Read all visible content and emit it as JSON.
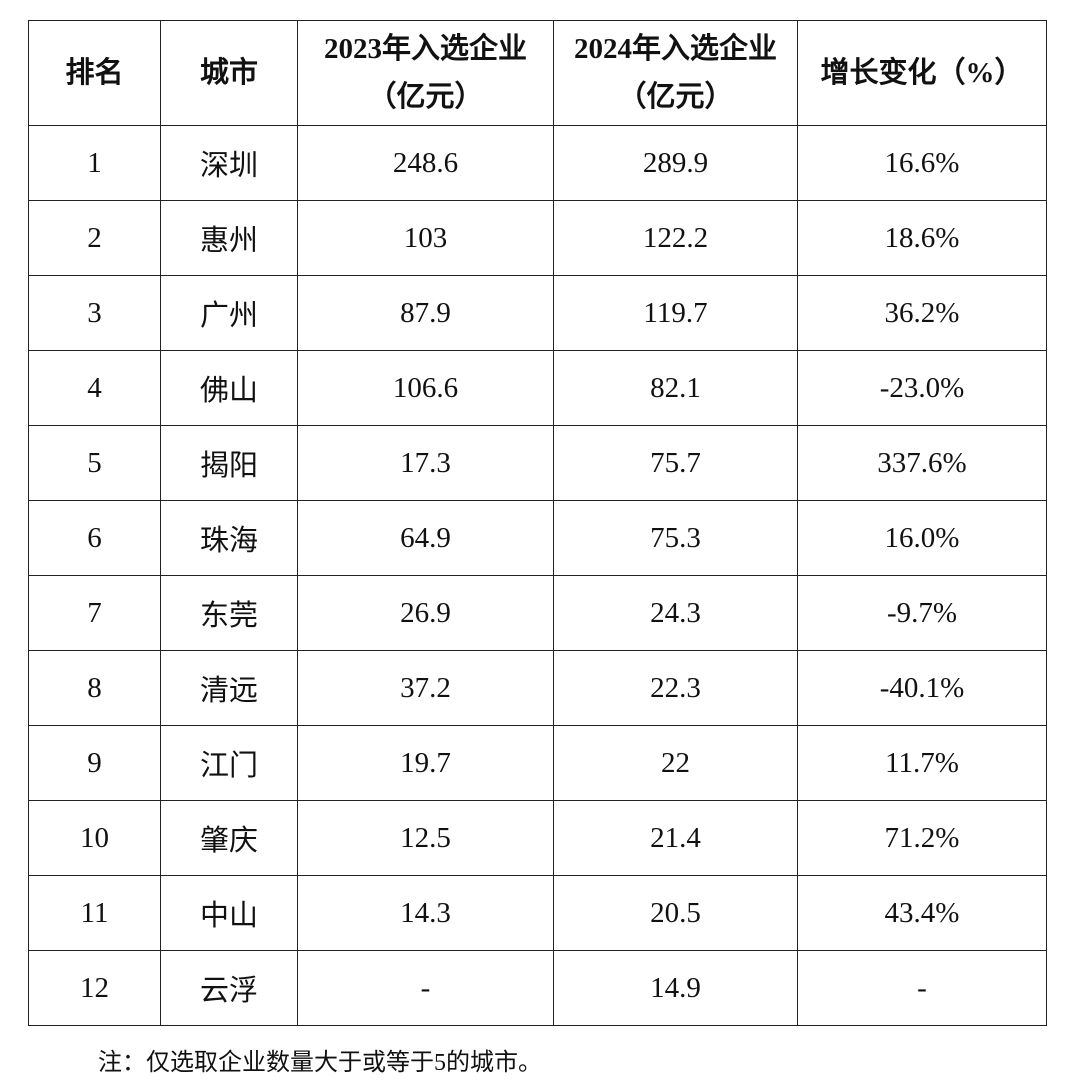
{
  "table": {
    "header": [
      "排名",
      "城市",
      "2023年入选企业（亿元）",
      "2024年入选企业（亿元）",
      "增长变化（%）"
    ],
    "rows": [
      [
        "1",
        "深圳",
        "248.6",
        "289.9",
        "16.6%"
      ],
      [
        "2",
        "惠州",
        "103",
        "122.2",
        "18.6%"
      ],
      [
        "3",
        "广州",
        "87.9",
        "119.7",
        "36.2%"
      ],
      [
        "4",
        "佛山",
        "106.6",
        "82.1",
        "-23.0%"
      ],
      [
        "5",
        "揭阳",
        "17.3",
        "75.7",
        "337.6%"
      ],
      [
        "6",
        "珠海",
        "64.9",
        "75.3",
        "16.0%"
      ],
      [
        "7",
        "东莞",
        "26.9",
        "24.3",
        "-9.7%"
      ],
      [
        "8",
        "清远",
        "37.2",
        "22.3",
        "-40.1%"
      ],
      [
        "9",
        "江门",
        "19.7",
        "22",
        "11.7%"
      ],
      [
        "10",
        "肇庆",
        "12.5",
        "21.4",
        "71.2%"
      ],
      [
        "11",
        "中山",
        "14.3",
        "20.5",
        "43.4%"
      ],
      [
        "12",
        "云浮",
        "-",
        "14.9",
        "-"
      ]
    ]
  },
  "note": "注：仅选取企业数量大于或等于5的城市。"
}
